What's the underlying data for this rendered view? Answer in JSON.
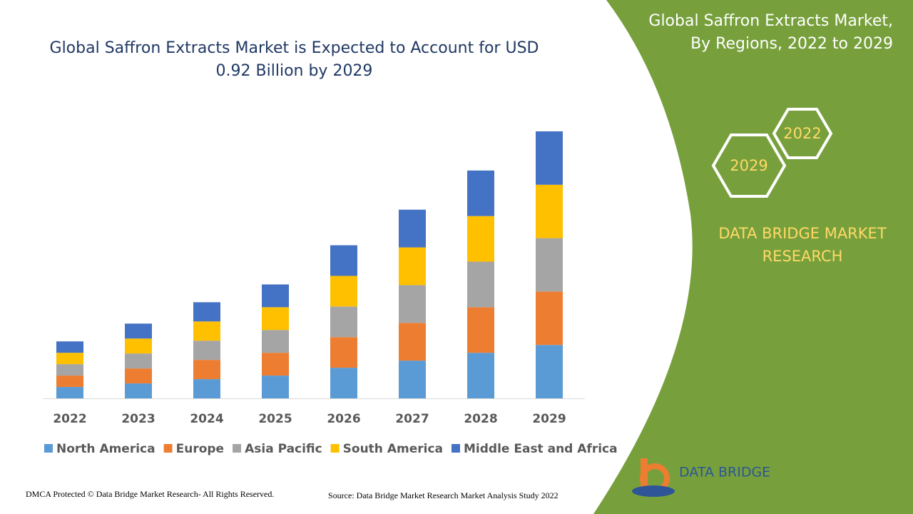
{
  "chart_data": {
    "type": "bar",
    "stacked": true,
    "title": "Global Saffron Extracts Market is Expected to Account for USD 0.92 Billion by 2029",
    "categories": [
      "2022",
      "2023",
      "2024",
      "2025",
      "2026",
      "2027",
      "2028",
      "2029"
    ],
    "series": [
      {
        "name": "North America",
        "color": "#5b9bd5",
        "values": [
          16,
          21,
          27,
          32,
          43,
          53,
          64,
          75
        ]
      },
      {
        "name": "Europe",
        "color": "#ed7d31",
        "values": [
          16,
          21,
          27,
          32,
          43,
          53,
          64,
          75
        ]
      },
      {
        "name": "Asia Pacific",
        "color": "#a5a5a5",
        "values": [
          16,
          21,
          27,
          32,
          43,
          53,
          64,
          75
        ]
      },
      {
        "name": "South America",
        "color": "#ffc000",
        "values": [
          16,
          21,
          27,
          32,
          43,
          53,
          64,
          75
        ]
      },
      {
        "name": "Middle East and Africa",
        "color": "#4472c4",
        "values": [
          16,
          21,
          27,
          32,
          43,
          53,
          64,
          75
        ]
      }
    ],
    "legend": "bottom"
  },
  "panel": {
    "title": "Global Saffron Extracts Market, By Regions, 2022 to 2029",
    "hexagons": [
      "2022",
      "2029"
    ],
    "brand": "DATA BRIDGE MARKET RESEARCH",
    "logo_text": "DATA BRIDGE"
  },
  "footer": {
    "dmca": "DMCA Protected © Data Bridge Market Research- All Rights Reserved.",
    "source": "Source: Data Bridge Market Research Market Analysis Study 2022"
  }
}
